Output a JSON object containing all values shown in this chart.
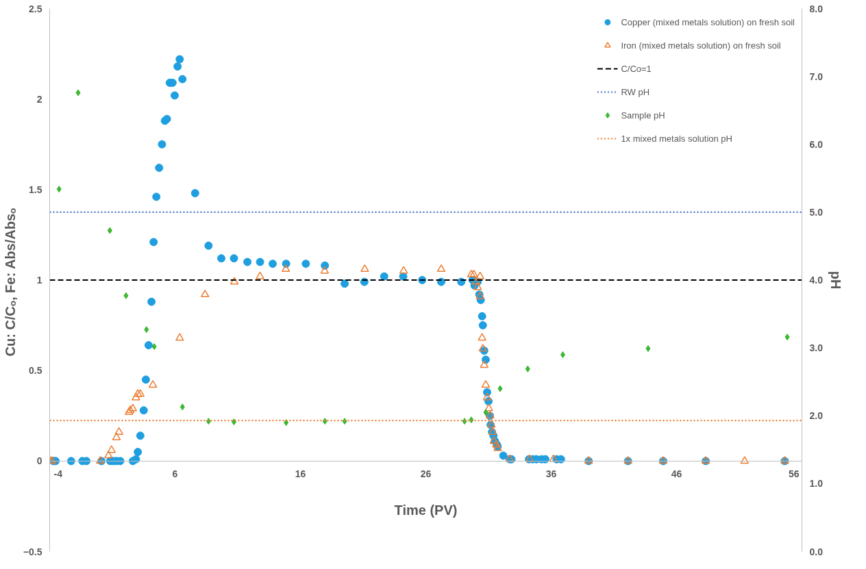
{
  "chart_data": {
    "type": "scatter",
    "xlabel": "Time (PV)",
    "ylabel": "Cu: C/Cₒ,  Fe: Abs/Absₒ",
    "y2label": "pH",
    "xlim": [
      -4,
      56
    ],
    "xticks": [
      -4,
      6,
      16,
      26,
      36,
      46,
      56
    ],
    "ylim": [
      -0.5,
      2.5
    ],
    "yticks": [
      -0.5,
      0,
      0.5,
      1,
      1.5,
      2,
      2.5
    ],
    "y2lim": [
      0,
      8
    ],
    "y2ticks": [
      {
        "value": 0,
        "label": "0.0"
      },
      {
        "value": 1,
        "label": "1.0"
      },
      {
        "value": 2,
        "label": "2.0"
      },
      {
        "value": 3,
        "label": "3.0"
      },
      {
        "value": 4,
        "label": "4.0"
      },
      {
        "value": 5,
        "label": "5.0"
      },
      {
        "value": 6,
        "label": "6.0"
      },
      {
        "value": 7,
        "label": "7.0"
      },
      {
        "value": 8,
        "label": "8.0"
      }
    ],
    "grid": false,
    "legend": "top right",
    "series": [
      {
        "name": "Copper (mixed metals solution) on fresh soil",
        "marker": "circle",
        "color": "#1f9fe0",
        "x": [
          -3.7,
          -3.53,
          -2.29,
          -1.39,
          -1.07,
          0.13,
          0.83,
          1.08,
          1.33,
          1.63,
          2.63,
          2.88,
          3.03,
          3.23,
          3.5,
          3.67,
          3.89,
          4.12,
          4.29,
          4.51,
          4.73,
          4.96,
          5.19,
          5.35,
          5.58,
          5.8,
          5.97,
          6.2,
          6.37,
          6.59,
          7.6,
          8.67,
          9.69,
          10.7,
          11.77,
          12.78,
          13.79,
          14.86,
          16.43,
          17.95,
          19.53,
          21.1,
          22.68,
          24.2,
          25.71,
          27.23,
          28.83,
          29.73,
          29.88,
          30.13,
          30.27,
          30.38,
          30.49,
          30.55,
          30.66,
          30.78,
          30.89,
          31.0,
          31.11,
          31.17,
          31.28,
          31.4,
          31.51,
          31.68,
          31.73,
          32.18,
          32.69,
          32.83,
          34.23,
          34.53,
          34.83,
          35.23,
          35.53,
          36.43,
          36.78,
          38.99,
          42.13,
          44.93,
          48.33,
          54.63
        ],
        "values": [
          0,
          0,
          0,
          0,
          0,
          0,
          0,
          0,
          0,
          0,
          0,
          0.01,
          0.05,
          0.14,
          0.28,
          0.45,
          0.64,
          0.88,
          1.21,
          1.46,
          1.62,
          1.75,
          1.88,
          1.89,
          2.09,
          2.09,
          2.02,
          2.18,
          2.22,
          2.11,
          1.48,
          1.19,
          1.12,
          1.12,
          1.1,
          1.1,
          1.09,
          1.09,
          1.09,
          1.08,
          0.98,
          0.99,
          1.02,
          1.02,
          1.0,
          0.99,
          0.99,
          1.0,
          0.97,
          0.99,
          0.92,
          0.89,
          0.8,
          0.75,
          0.61,
          0.56,
          0.38,
          0.33,
          0.25,
          0.2,
          0.16,
          0.14,
          0.11,
          0.09,
          0.08,
          0.03,
          0.01,
          0.01,
          0.01,
          0.01,
          0.01,
          0.01,
          0.01,
          0.01,
          0.01,
          0,
          0,
          0,
          0,
          0
        ]
      },
      {
        "name": "Iron (mixed metals solution) on fresh soil",
        "marker": "triangle",
        "color": "#ed7d31",
        "x": [
          -3.97,
          -3.81,
          0.03,
          0.69,
          0.93,
          1.33,
          1.53,
          2.33,
          2.43,
          2.63,
          2.88,
          3.03,
          3.23,
          4.23,
          6.37,
          8.39,
          10.73,
          12.78,
          14.83,
          17.93,
          21.13,
          24.23,
          27.23,
          29.63,
          29.83,
          30.33,
          29.99,
          30.13,
          30.33,
          30.49,
          30.55,
          30.66,
          30.78,
          30.89,
          31.03,
          31.13,
          31.23,
          31.33,
          31.43,
          31.63,
          31.73,
          32.69,
          34.28,
          36.18,
          38.99,
          42.13,
          44.93,
          48.33,
          51.43,
          54.63
        ],
        "values": [
          0,
          0,
          0,
          0.03,
          0.06,
          0.13,
          0.16,
          0.27,
          0.28,
          0.29,
          0.35,
          0.37,
          0.37,
          0.42,
          0.68,
          0.92,
          0.99,
          1.02,
          1.06,
          1.05,
          1.06,
          1.05,
          1.06,
          1.03,
          1.03,
          1.02,
          0.99,
          0.96,
          0.91,
          0.68,
          0.62,
          0.53,
          0.42,
          0.35,
          0.29,
          0.25,
          0.2,
          0.16,
          0.11,
          0.09,
          0.07,
          0.01,
          0.01,
          0.01,
          0,
          0,
          0,
          0,
          0,
          0
        ]
      },
      {
        "name": "C/Co=1",
        "type": "line",
        "marker": "none",
        "line_style": "dashed",
        "color": "#000000",
        "x": [
          -4,
          56
        ],
        "values": [
          1,
          1
        ]
      },
      {
        "name": "RW pH",
        "type": "line",
        "marker": "none",
        "line_style": "dotted",
        "color": "#4472c4",
        "axis": "y2",
        "x": [
          -4,
          56
        ],
        "values": [
          5.0,
          5.0
        ]
      },
      {
        "name": "Sample pH",
        "marker": "diamond",
        "color": "#3cb832",
        "axis": "y2",
        "x": [
          -3.25,
          -1.73,
          0.8,
          2.09,
          3.72,
          4.34,
          6.59,
          8.67,
          10.7,
          14.86,
          17.95,
          19.53,
          29.09,
          29.63,
          30.78,
          31.93,
          34.13,
          36.93,
          43.73,
          54.83
        ],
        "values": [
          5.34,
          6.76,
          4.73,
          3.77,
          3.27,
          3.02,
          2.13,
          1.92,
          1.91,
          1.9,
          1.92,
          1.92,
          1.92,
          1.94,
          2.05,
          2.4,
          2.69,
          2.9,
          2.99,
          3.16
        ]
      },
      {
        "name": "1x mixed metals solution pH",
        "type": "line",
        "marker": "none",
        "line_style": "dotted",
        "color": "#ed7d31",
        "axis": "y2",
        "x": [
          -4,
          56
        ],
        "values": [
          1.93,
          1.93
        ]
      }
    ]
  }
}
